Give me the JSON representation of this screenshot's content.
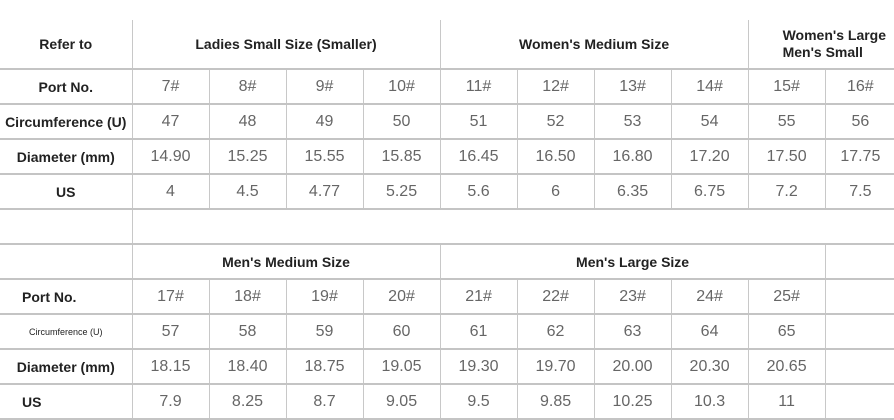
{
  "top": {
    "refer_label": "Refer to",
    "groups": [
      {
        "label": "Ladies Small Size (Smaller)",
        "span": 4
      },
      {
        "label": "Women's Medium Size",
        "span": 4
      },
      {
        "label": "Women's Large Men's Small",
        "span": 2
      }
    ],
    "rows": [
      {
        "label": "Port No.",
        "values": [
          "7#",
          "8#",
          "9#",
          "10#",
          "11#",
          "12#",
          "13#",
          "14#",
          "15#",
          "16#"
        ]
      },
      {
        "label": "Circumference (U)",
        "values": [
          "47",
          "48",
          "49",
          "50",
          "51",
          "52",
          "53",
          "54",
          "55",
          "56"
        ]
      },
      {
        "label": "Diameter (mm)",
        "values": [
          "14.90",
          "15.25",
          "15.55",
          "15.85",
          "16.45",
          "16.50",
          "16.80",
          "17.20",
          "17.50",
          "17.75"
        ]
      },
      {
        "label": "US",
        "values": [
          "4",
          "4.5",
          "4.77",
          "5.25",
          "5.6",
          "6",
          "6.35",
          "6.75",
          "7.2",
          "7.5"
        ]
      }
    ]
  },
  "bottom": {
    "groups": [
      {
        "label": "Men's Medium Size",
        "span": 4
      },
      {
        "label": "Men's Large Size",
        "span": 5
      },
      {
        "label": "",
        "span": 1
      }
    ],
    "rows": [
      {
        "label": "Port No.",
        "values": [
          "17#",
          "18#",
          "19#",
          "20#",
          "21#",
          "22#",
          "23#",
          "24#",
          "25#",
          ""
        ]
      },
      {
        "label": "Circumference (U)",
        "values": [
          "57",
          "58",
          "59",
          "60",
          "61",
          "62",
          "63",
          "64",
          "65",
          ""
        ]
      },
      {
        "label": "Diameter (mm)",
        "values": [
          "18.15",
          "18.40",
          "18.75",
          "19.05",
          "19.30",
          "19.70",
          "20.00",
          "20.30",
          "20.65",
          ""
        ]
      },
      {
        "label": "US",
        "values": [
          "7.9",
          "8.25",
          "8.7",
          "9.05",
          "9.5",
          "9.85",
          "10.25",
          "10.3",
          "11",
          ""
        ]
      }
    ]
  }
}
